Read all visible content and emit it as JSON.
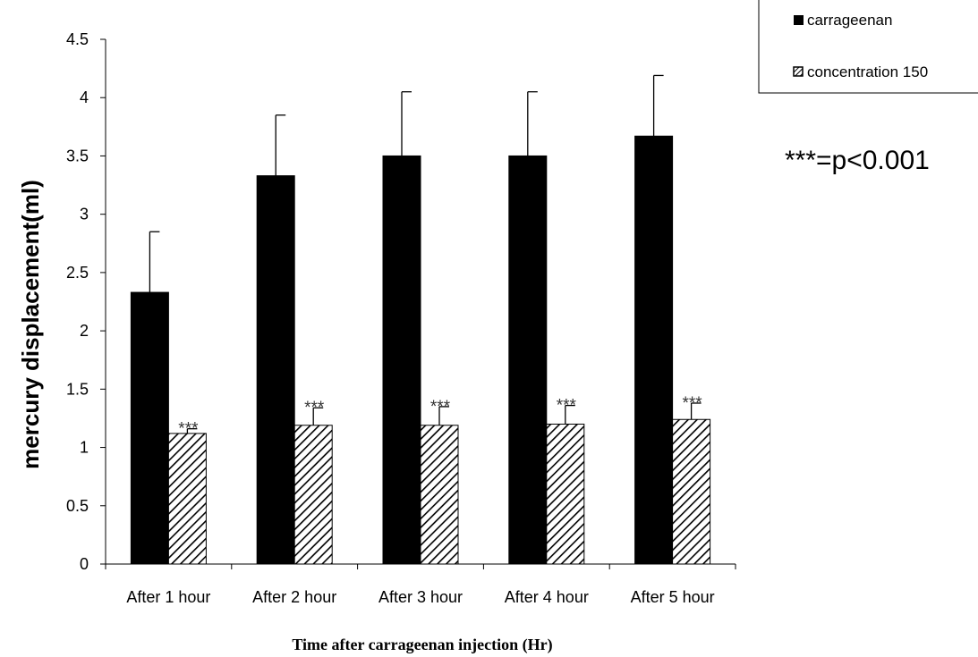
{
  "chart_data": {
    "type": "bar",
    "categories": [
      "After 1 hour",
      "After 2 hour",
      "After 3 hour",
      "After 4 hour",
      "After 5 hour"
    ],
    "series": [
      {
        "name": "carrageenan",
        "values": [
          2.33,
          3.33,
          3.5,
          3.5,
          3.67
        ],
        "errors": [
          0.52,
          0.52,
          0.55,
          0.55,
          0.52
        ],
        "fill": "solid",
        "color": "#000000"
      },
      {
        "name": "concentration 150",
        "values": [
          1.12,
          1.19,
          1.19,
          1.2,
          1.24
        ],
        "errors": [
          0.04,
          0.15,
          0.16,
          0.16,
          0.14
        ],
        "fill": "diagonal-hatch",
        "color": "#000000",
        "significance": [
          "***",
          "***",
          "***",
          "***",
          "***"
        ]
      }
    ],
    "xlabel": "Time after carrageenan injection (Hr)",
    "ylabel": "mercury displacement(ml)",
    "ylim": [
      0,
      4.5
    ],
    "yticks": [
      "0",
      "0.5",
      "1",
      "1.5",
      "2",
      "2.5",
      "3",
      "3.5",
      "4",
      "4.5"
    ],
    "grid": false,
    "legend_position": "top-right",
    "annotation": "***=p<0.001"
  }
}
